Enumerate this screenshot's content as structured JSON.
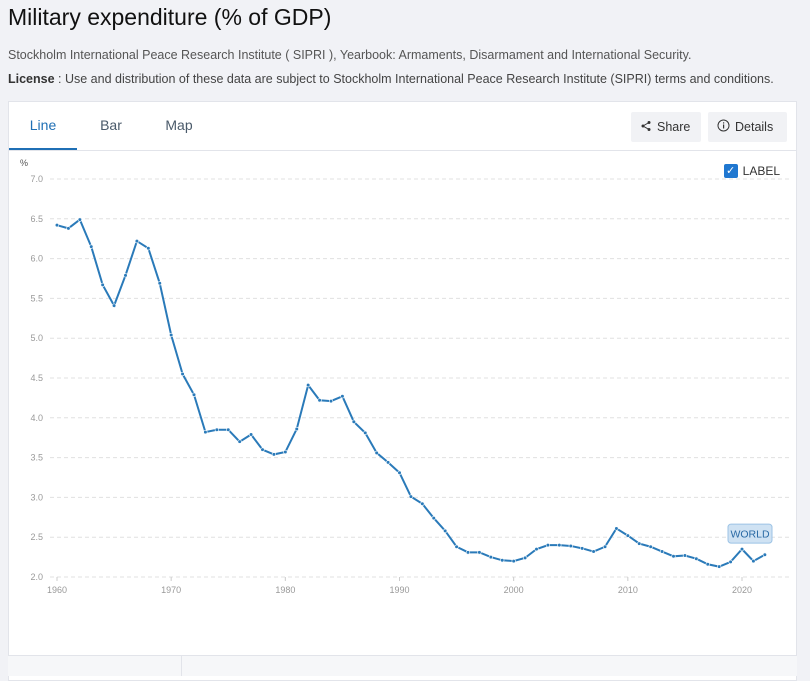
{
  "header": {
    "title": "Military expenditure (% of GDP)",
    "source": "Stockholm International Peace Research Institute ( SIPRI ), Yearbook: Armaments, Disarmament and International Security.",
    "license_label": "License",
    "license_text": " : Use and distribution of these data are subject to Stockholm International Peace Research Institute (SIPRI) terms and conditions."
  },
  "tabs": [
    {
      "label": "Line"
    },
    {
      "label": "Bar"
    },
    {
      "label": "Map"
    }
  ],
  "buttons": {
    "share": "Share",
    "details": "Details"
  },
  "label_toggle": {
    "label": "LABEL",
    "checked": true
  },
  "colors": {
    "line": "#2a7ab9",
    "accent": "#1f6fb5"
  },
  "chart_data": {
    "type": "line",
    "ylabel": "%",
    "ylim": [
      2.0,
      7.0
    ],
    "yticks": [
      "2.0",
      "2.5",
      "3.0",
      "3.5",
      "4.0",
      "4.5",
      "5.0",
      "5.5",
      "6.0",
      "6.5",
      "7.0"
    ],
    "xticks": [
      "1960",
      "1970",
      "1980",
      "1990",
      "2000",
      "2010",
      "2020"
    ],
    "grid": true,
    "series": [
      {
        "name": "WORLD",
        "x": [
          1960,
          1961,
          1962,
          1963,
          1964,
          1965,
          1966,
          1967,
          1968,
          1969,
          1970,
          1971,
          1972,
          1973,
          1974,
          1975,
          1976,
          1977,
          1978,
          1979,
          1980,
          1981,
          1982,
          1983,
          1984,
          1985,
          1986,
          1987,
          1988,
          1989,
          1990,
          1991,
          1992,
          1993,
          1994,
          1995,
          1996,
          1997,
          1998,
          1999,
          2000,
          2001,
          2002,
          2003,
          2004,
          2005,
          2006,
          2007,
          2008,
          2009,
          2010,
          2011,
          2012,
          2013,
          2014,
          2015,
          2016,
          2017,
          2018,
          2019,
          2020,
          2021,
          2022
        ],
        "values": [
          6.42,
          6.38,
          6.49,
          6.15,
          5.67,
          5.41,
          5.79,
          6.22,
          6.13,
          5.69,
          5.04,
          4.55,
          4.29,
          3.82,
          3.85,
          3.85,
          3.7,
          3.79,
          3.6,
          3.54,
          3.57,
          3.86,
          4.41,
          4.22,
          4.21,
          4.27,
          3.95,
          3.81,
          3.56,
          3.44,
          3.31,
          3.01,
          2.92,
          2.74,
          2.58,
          2.38,
          2.31,
          2.31,
          2.25,
          2.21,
          2.2,
          2.24,
          2.35,
          2.4,
          2.4,
          2.39,
          2.36,
          2.32,
          2.38,
          2.61,
          2.52,
          2.42,
          2.38,
          2.32,
          2.26,
          2.27,
          2.23,
          2.16,
          2.13,
          2.19,
          2.35,
          2.2,
          2.28
        ]
      }
    ]
  }
}
